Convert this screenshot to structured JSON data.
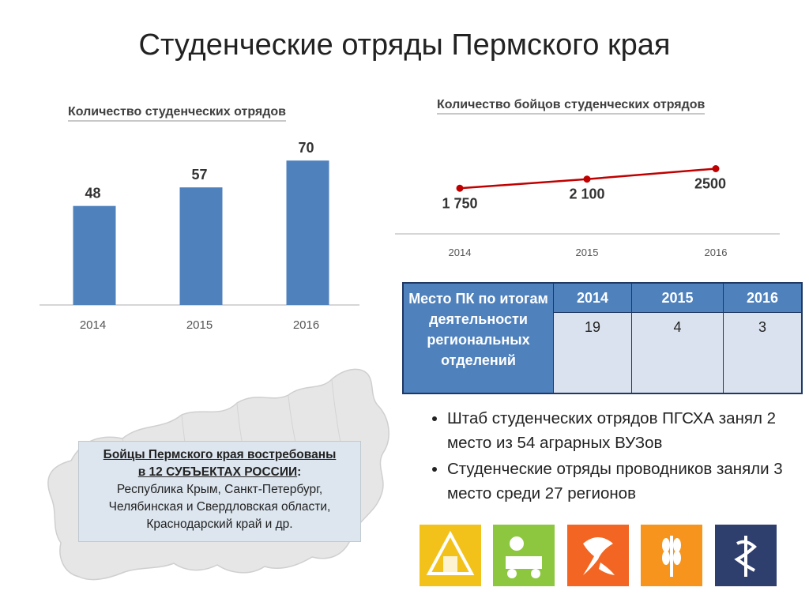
{
  "title": "Студенческие отряды Пермского края",
  "chart_data": [
    {
      "type": "bar",
      "title": "Количество студенческих отрядов",
      "categories": [
        "2014",
        "2015",
        "2016"
      ],
      "values": [
        48,
        57,
        70
      ],
      "value_labels": [
        "48",
        "57",
        "70"
      ],
      "ylim": [
        0,
        72
      ],
      "grid": false,
      "color": "#4f81bd"
    },
    {
      "type": "line",
      "title": "Количество бойцов студенческих отрядов",
      "categories": [
        "2014",
        "2015",
        "2016"
      ],
      "values": [
        1750,
        2100,
        2500
      ],
      "value_labels": [
        "1 750",
        "2 100",
        "2500"
      ],
      "ylim": [
        0,
        5000
      ],
      "grid": false,
      "color": "#c00000"
    }
  ],
  "table": {
    "row_header": "Место ПК по итогам деятельности региональных отделений",
    "years": [
      "2014",
      "2015",
      "2016"
    ],
    "values": [
      "19",
      "4",
      "3"
    ]
  },
  "bullets": [
    "Штаб студенческих отрядов ПГСХА занял 2 место из 54 аграрных ВУЗов",
    "Студенческие отряды проводников заняли 3 место среди 27 регионов"
  ],
  "infobox": {
    "heading_line1": "Бойцы Пермского края востребованы",
    "heading_line2": "в 12 СУБЪЕКТАХ РОССИИ",
    "colon": ":",
    "body_lines": [
      "Республика Крым, Санкт-Петербург,",
      "Челябинская и Свердловская области,",
      "Краснодарский край и др."
    ]
  },
  "icons": [
    {
      "name": "construction-emblem-icon",
      "color": "#f2c21b"
    },
    {
      "name": "agro-machinery-icon",
      "color": "#8dc63f"
    },
    {
      "name": "conductor-emblem-icon",
      "color": "#f26522"
    },
    {
      "name": "wheat-icon",
      "color": "#f7941d"
    },
    {
      "name": "medical-caduceus-icon",
      "color": "#2e3f6e"
    }
  ],
  "colors": {
    "accent_blue": "#4f81bd",
    "line_red": "#c00000",
    "table_cell": "#dbe2ef",
    "infobox_bg": "#dde6ef"
  }
}
